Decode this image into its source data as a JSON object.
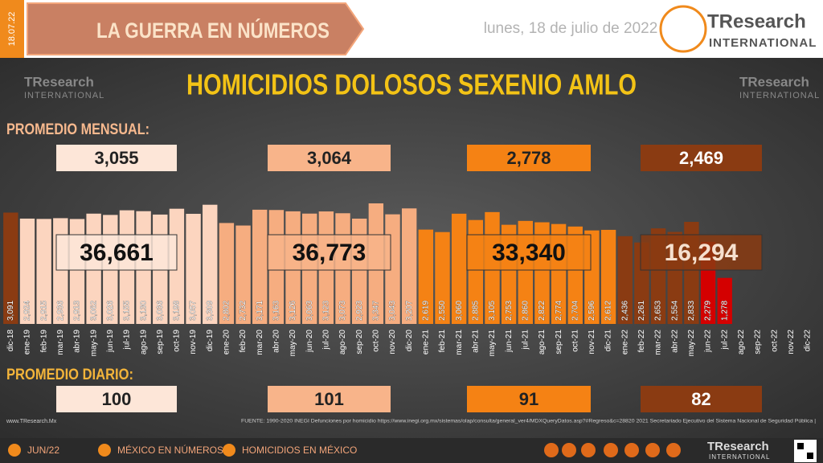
{
  "header": {
    "date_tag": "18.07.22",
    "section": "LA GUERRA EN NÚMEROS",
    "date": "lunes, 18 de julio de 2022",
    "logo_name": "TResearch",
    "logo_sub": "INTERNATIONAL"
  },
  "chart_data": {
    "type": "bar",
    "title": "HOMICIDIOS DOLOSOS SEXENIO AMLO",
    "categories": [
      "dic-18",
      "ene-19",
      "feb-19",
      "mar-19",
      "abr-19",
      "may-19",
      "jun-19",
      "jul-19",
      "ago-19",
      "sep-19",
      "oct-19",
      "nov-19",
      "dic-19",
      "ene-20",
      "feb-20",
      "mar-20",
      "abr-20",
      "may-20",
      "jun-20",
      "jul-20",
      "ago-20",
      "sep-20",
      "oct-20",
      "nov-20",
      "dic-20",
      "ene-21",
      "feb-21",
      "mar-21",
      "abr-21",
      "may-21",
      "jun-21",
      "jul-21",
      "ago-21",
      "sep-21",
      "oct-21",
      "nov-21",
      "dic-21",
      "ene-22",
      "feb-22",
      "mar-22",
      "abr-22",
      "may-22",
      "jun-22",
      "jul-22",
      "ago-22",
      "sep-22",
      "oct-22",
      "nov-22",
      "dic-22"
    ],
    "values": [
      3091,
      2924,
      2915,
      2936,
      2913,
      3062,
      3026,
      3155,
      3130,
      3036,
      3198,
      3057,
      3309,
      2802,
      2732,
      3171,
      3163,
      3126,
      3063,
      3123,
      3073,
      2923,
      3347,
      3043,
      3207,
      2619,
      2550,
      3060,
      2885,
      3105,
      2753,
      2860,
      2822,
      2774,
      2704,
      2596,
      2612,
      2436,
      2261,
      2653,
      2554,
      2833,
      2279,
      1278,
      null,
      null,
      null,
      null,
      null
    ],
    "value_labels": [
      "3,091",
      "2,924",
      "2,915",
      "2,936",
      "2,913",
      "3,062",
      "3,026",
      "3,155",
      "3,130",
      "3,036",
      "3,198",
      "3,057",
      "3,309",
      "2,802",
      "2,732",
      "3,171",
      "3,163",
      "3,126",
      "3,063",
      "3,123",
      "3,073",
      "2,923",
      "3,347",
      "3,043",
      "3,207",
      "2,619",
      "2,550",
      "3,060",
      "2,885",
      "3,105",
      "2,753",
      "2,860",
      "2,822",
      "2,774",
      "2,704",
      "2,596",
      "2,612",
      "2,436",
      "2,261",
      "2,653",
      "2,554",
      "2,833",
      "2,279",
      "1,278",
      null,
      null,
      null,
      null,
      null
    ],
    "colors": [
      "#8a3b12",
      "#fcd5bf",
      "#fcd5bf",
      "#fcd5bf",
      "#fcd5bf",
      "#fcd5bf",
      "#fcd5bf",
      "#fcd5bf",
      "#fcd5bf",
      "#fcd5bf",
      "#fcd5bf",
      "#fcd5bf",
      "#fcd5bf",
      "#f6ad80",
      "#f6ad80",
      "#f6ad80",
      "#f6ad80",
      "#f6ad80",
      "#f6ad80",
      "#f6ad80",
      "#f6ad80",
      "#f6ad80",
      "#f6ad80",
      "#f6ad80",
      "#f6ad80",
      "#f58214",
      "#f58214",
      "#f58214",
      "#f58214",
      "#f58214",
      "#f58214",
      "#f58214",
      "#f58214",
      "#f58214",
      "#f58214",
      "#f58214",
      "#f58214",
      "#8a3b12",
      "#8a3b12",
      "#8a3b12",
      "#8a3b12",
      "#8a3b12",
      "#d40000",
      "#d40000",
      null,
      null,
      null,
      null,
      null
    ],
    "monthly_label": "PROMEDIO MENSUAL:",
    "monthly": {
      "values": [
        3055,
        3064,
        2778,
        2469
      ],
      "value_labels": [
        "3,055",
        "3,064",
        "2,778",
        "2,469"
      ]
    },
    "annual": {
      "values": [
        36661,
        36773,
        33340,
        16294
      ],
      "value_labels": [
        "36,661",
        "36,773",
        "33,340",
        "16,294"
      ]
    },
    "daily_label": "PROMEDIO DIARIO:",
    "daily": {
      "values": [
        100,
        101,
        91,
        82
      ]
    },
    "box_colors": [
      "#fde6d8",
      "#f8b48a",
      "#f58214",
      "#8a3b12"
    ]
  },
  "footer": {
    "site": "www.TResearch.Mx",
    "source": "FUENTE: 1990-2020 INEGI Defunciones por homicidio https://www.inegi.org.mx/sistemas/olap/consulta/general_ver4/MDXQueryDatos.asp?#Regreso&c=28820   2021 Secretariado Ejecutivo del Sistema Nacional de Seguridad Pública |",
    "nav": [
      "JUN/22",
      "MÉXICO EN NÚMEROS",
      "HOMICIDIOS EN MÉXICO"
    ]
  }
}
